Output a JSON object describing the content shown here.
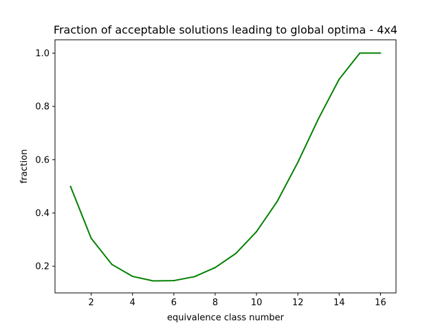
{
  "chart_data": {
    "type": "line",
    "title": "Fraction of acceptable solutions leading to global optima - 4x4",
    "xlabel": "equivalence class number",
    "ylabel": "fraction",
    "xlim": [
      0.25,
      16.75
    ],
    "ylim": [
      0.1,
      1.05
    ],
    "xticks": [
      2,
      4,
      6,
      8,
      10,
      12,
      14,
      16
    ],
    "yticks": [
      0.2,
      0.4,
      0.6,
      0.8,
      1.0
    ],
    "xtick_labels": [
      "2",
      "4",
      "6",
      "8",
      "10",
      "12",
      "14",
      "16"
    ],
    "ytick_labels": [
      "0.2",
      "0.4",
      "0.6",
      "0.8",
      "1.0"
    ],
    "grid": false,
    "series": [
      {
        "color": "#008000",
        "x": [
          1,
          2,
          3,
          4,
          5,
          6,
          7,
          8,
          9,
          10,
          11,
          12,
          13,
          14,
          15,
          16
        ],
        "values": [
          0.5,
          0.305,
          0.207,
          0.162,
          0.145,
          0.146,
          0.161,
          0.195,
          0.248,
          0.33,
          0.443,
          0.59,
          0.754,
          0.902,
          1.0,
          1.0
        ]
      }
    ]
  }
}
